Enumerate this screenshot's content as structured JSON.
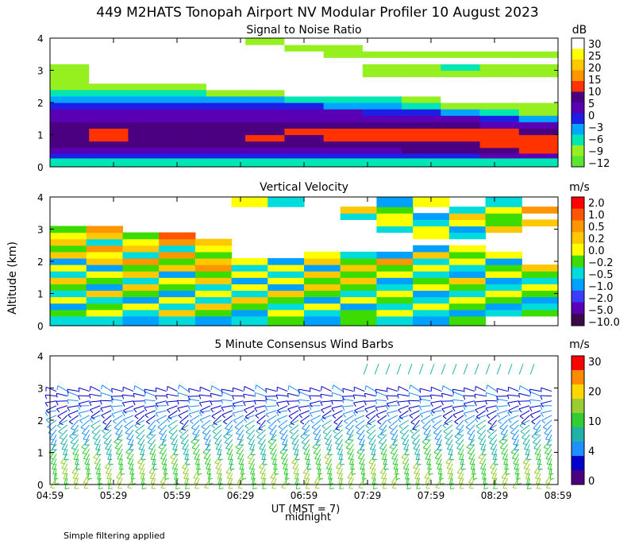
{
  "figure": {
    "title": "449 M2HATS Tonopah Airport NV Modular Profiler 10 August 2023",
    "ylabel": "Altitude (km)",
    "xlabel": "UT  (MST = 7)",
    "xnote": "midnight",
    "footnote": "Simple filtering applied"
  },
  "chart_data": [
    {
      "type": "heatmap",
      "title": "Signal to Noise Ratio",
      "x": [
        "04:59",
        "05:29",
        "05:59",
        "06:29",
        "06:59",
        "07:29",
        "07:59",
        "08:29",
        "08:59"
      ],
      "y_ticks": [
        "0",
        "1",
        "2",
        "3",
        "4"
      ],
      "ylim": [
        0,
        4
      ],
      "colorbar": {
        "unit": "dB",
        "labels": [
          "30",
          "25",
          "20",
          "15",
          "10",
          "5",
          "0",
          "−3",
          "−6",
          "−9",
          "−12"
        ],
        "colors": [
          "#ffffff",
          "#ffff00",
          "#ffc800",
          "#ff9600",
          "#ff3300",
          "#4b0082",
          "#5a00b4",
          "#1e1ee6",
          "#00a5ff",
          "#00e6b4",
          "#96f020",
          "#5ae632"
        ]
      },
      "rows_altitude_km": [
        0.2,
        0.35,
        0.5,
        0.7,
        0.9,
        1.1,
        1.3,
        1.5,
        1.7,
        1.9,
        2.1,
        2.3,
        2.5,
        2.7,
        2.9,
        3.1,
        3.3,
        3.5,
        3.7,
        3.9
      ],
      "values_dB": [
        [
          -9,
          -9,
          -9,
          -9,
          -9,
          -9,
          -9,
          -9,
          -9,
          -9,
          -9,
          -9,
          -9
        ],
        [
          -3,
          -3,
          -3,
          -3,
          -3,
          -3,
          -3,
          -3,
          -3,
          -3,
          -3,
          0,
          0
        ],
        [
          3,
          3,
          3,
          3,
          3,
          3,
          3,
          3,
          3,
          5,
          5,
          8,
          12
        ],
        [
          5,
          5,
          5,
          5,
          5,
          6,
          6,
          7,
          8,
          8,
          9,
          10,
          10
        ],
        [
          5,
          10,
          6,
          8,
          5,
          10,
          8,
          10,
          12,
          12,
          13,
          12,
          10
        ],
        [
          5,
          12,
          5,
          5,
          8,
          5,
          10,
          12,
          12,
          12,
          12,
          10,
          5
        ],
        [
          5,
          5,
          5,
          5,
          5,
          5,
          5,
          5,
          5,
          5,
          5,
          3,
          0
        ],
        [
          3,
          3,
          3,
          3,
          3,
          3,
          3,
          3,
          3,
          2,
          0,
          -3,
          -6
        ],
        [
          0,
          0,
          0,
          0,
          0,
          0,
          0,
          0,
          -1,
          -3,
          -6,
          -9,
          -12
        ],
        [
          -3,
          -3,
          -3,
          -3,
          -3,
          -3,
          -3,
          -5,
          -6,
          -9,
          -12,
          -12,
          -12
        ],
        [
          -6,
          -6,
          -6,
          -6,
          -6,
          -6,
          -9,
          -9,
          -9,
          -12,
          30,
          30,
          30
        ],
        [
          -9,
          -9,
          -9,
          -9,
          -12,
          -12,
          30,
          30,
          30,
          30,
          30,
          30,
          30
        ],
        [
          -12,
          -12,
          -12,
          -12,
          30,
          30,
          30,
          30,
          30,
          30,
          30,
          30,
          30
        ],
        [
          -12,
          30,
          30,
          30,
          30,
          30,
          30,
          30,
          30,
          30,
          30,
          30,
          30
        ],
        [
          -12,
          30,
          30,
          30,
          30,
          30,
          30,
          30,
          -12,
          -12,
          -12,
          -12,
          -12
        ],
        [
          -12,
          30,
          30,
          30,
          30,
          30,
          30,
          30,
          -12,
          -12,
          -9,
          -12,
          -12
        ],
        [
          30,
          30,
          30,
          30,
          30,
          30,
          30,
          30,
          30,
          30,
          30,
          30,
          30
        ],
        [
          30,
          30,
          30,
          30,
          30,
          30,
          30,
          -12,
          -12,
          -12,
          -12,
          -12,
          -12
        ],
        [
          30,
          30,
          30,
          30,
          30,
          30,
          -12,
          -12,
          30,
          30,
          30,
          30,
          30
        ],
        [
          30,
          30,
          30,
          30,
          30,
          -12,
          30,
          30,
          30,
          30,
          30,
          30,
          30
        ]
      ]
    },
    {
      "type": "heatmap",
      "title": "Vertical Velocity",
      "x": [
        "04:59",
        "05:29",
        "05:59",
        "06:29",
        "06:59",
        "07:29",
        "07:59",
        "08:29",
        "08:59"
      ],
      "y_ticks": [
        "0",
        "1",
        "2",
        "3",
        "4"
      ],
      "ylim": [
        0,
        4
      ],
      "colorbar": {
        "unit": "m/s",
        "labels": [
          "2.0",
          "1.0",
          "0.5",
          "0.2",
          "0.0",
          "−0.2",
          "−0.5",
          "−1.0",
          "−2.0",
          "−5.0",
          "−10.0"
        ],
        "colors": [
          "#ff0000",
          "#ff5500",
          "#ff9600",
          "#ffc800",
          "#ffff00",
          "#3cdc00",
          "#00dcdc",
          "#00a0ff",
          "#3c3cff",
          "#5a00b4",
          "#3a0a4a"
        ]
      },
      "rows_altitude_km": [
        0.2,
        0.4,
        0.6,
        0.8,
        1.0,
        1.2,
        1.4,
        1.6,
        1.8,
        2.0,
        2.2,
        2.4,
        2.6,
        2.8,
        3.0,
        3.2,
        3.4,
        3.6,
        3.8
      ],
      "values_ms": [
        [
          -0.3,
          -0.3,
          -0.6,
          -0.3,
          -0.6,
          -0.3,
          -0.1,
          -0.6,
          -0.1,
          -0.3,
          -0.6,
          -0.1,
          null,
          null
        ],
        [
          -0.1,
          0.1,
          -0.3,
          0.3,
          -0.1,
          -0.6,
          0.1,
          -0.3,
          -0.1,
          0.1,
          -0.3,
          -0.6,
          -0.3,
          -0.1
        ],
        [
          -0.6,
          -0.1,
          0.1,
          -0.3,
          0.3,
          -0.1,
          -0.3,
          0.1,
          -0.6,
          -0.3,
          0.1,
          -0.1,
          -0.6,
          -0.3
        ],
        [
          0.1,
          -0.3,
          -0.6,
          0.1,
          -0.3,
          0.3,
          -0.1,
          -0.6,
          0.1,
          -0.1,
          -0.3,
          0.1,
          -0.1,
          -0.6
        ],
        [
          -0.3,
          0.3,
          -0.1,
          -0.6,
          0.1,
          -0.3,
          0.3,
          -0.1,
          -0.3,
          0.1,
          -0.6,
          -0.3,
          0.1,
          -0.1
        ],
        [
          -0.1,
          -0.6,
          0.3,
          -0.1,
          -0.3,
          0.1,
          -0.6,
          0.3,
          -0.1,
          -0.3,
          0.1,
          -0.1,
          -0.3,
          0.1
        ],
        [
          0.3,
          -0.1,
          -0.3,
          0.1,
          0.3,
          -0.6,
          0.1,
          -0.1,
          0.3,
          -0.6,
          -0.1,
          0.3,
          -0.6,
          -0.3
        ],
        [
          -0.3,
          0.1,
          0.3,
          -0.6,
          -0.1,
          0.1,
          -0.3,
          0.3,
          -0.1,
          0.1,
          -0.3,
          -0.6,
          0.1,
          -0.1
        ],
        [
          0.1,
          -0.6,
          -0.1,
          0.3,
          0.6,
          -0.3,
          0.1,
          -0.6,
          0.3,
          -0.1,
          0.1,
          -0.3,
          -0.1,
          0.3
        ],
        [
          -0.6,
          0.3,
          0.6,
          -0.1,
          0.3,
          0.1,
          -0.6,
          0.3,
          -0.1,
          0.6,
          -0.3,
          0.1,
          -0.6,
          null
        ],
        [
          0.3,
          0.1,
          -0.3,
          0.6,
          -0.1,
          null,
          null,
          0.1,
          -0.3,
          -0.6,
          0.3,
          -0.1,
          0.1,
          null
        ],
        [
          -0.1,
          0.6,
          0.3,
          -0.3,
          0.1,
          null,
          null,
          null,
          null,
          null,
          -0.6,
          0.1,
          null,
          null
        ],
        [
          0.3,
          -0.3,
          0.1,
          0.6,
          0.3,
          null,
          null,
          null,
          null,
          null,
          null,
          null,
          null,
          null
        ],
        [
          0.1,
          0.3,
          -0.1,
          1.5,
          null,
          null,
          null,
          null,
          null,
          null,
          0.1,
          -0.3,
          null,
          null
        ],
        [
          -0.1,
          0.6,
          null,
          null,
          null,
          null,
          null,
          null,
          null,
          -0.3,
          0.1,
          -0.6,
          0.3,
          null
        ],
        [
          null,
          null,
          null,
          null,
          null,
          null,
          null,
          null,
          null,
          0.1,
          -0.3,
          0.1,
          -0.1,
          0.3
        ],
        [
          null,
          null,
          null,
          null,
          null,
          null,
          null,
          null,
          -0.3,
          0.1,
          -0.6,
          0.3,
          -0.1,
          null
        ],
        [
          null,
          null,
          null,
          null,
          null,
          null,
          null,
          null,
          0.3,
          -0.1,
          null,
          -0.3,
          0.1,
          0.6
        ],
        [
          null,
          null,
          null,
          null,
          null,
          0.1,
          -0.3,
          null,
          null,
          -0.6,
          0.1,
          null,
          -0.3,
          null
        ]
      ]
    },
    {
      "type": "scatter",
      "subtype": "wind-barbs",
      "title": "5 Minute Consensus Wind Barbs",
      "x": [
        "04:59",
        "05:29",
        "05:59",
        "06:29",
        "06:59",
        "07:29",
        "07:59",
        "08:29",
        "08:59"
      ],
      "y_ticks": [
        "0",
        "1",
        "2",
        "3",
        "4"
      ],
      "ylim": [
        0,
        4
      ],
      "colorbar": {
        "unit": "m/s",
        "labels": [
          "30",
          "20",
          "10",
          "4",
          "0"
        ],
        "colors": [
          "#ff0000",
          "#ff8c00",
          "#ffd700",
          "#9acd32",
          "#32cd32",
          "#20b2aa",
          "#1e90ff",
          "#0000cd",
          "#4b0082"
        ]
      },
      "profile": [
        {
          "altitude_km": 0.5,
          "speed_ms": 10,
          "direction_deg": 200
        },
        {
          "altitude_km": 1.0,
          "speed_ms": 9,
          "direction_deg": 205
        },
        {
          "altitude_km": 1.5,
          "speed_ms": 7,
          "direction_deg": 215
        },
        {
          "altitude_km": 2.0,
          "speed_ms": 5,
          "direction_deg": 230
        },
        {
          "altitude_km": 2.5,
          "speed_ms": 3,
          "direction_deg": 260
        },
        {
          "altitude_km": 3.0,
          "speed_ms": 3,
          "direction_deg": 300
        },
        {
          "altitude_km": 3.75,
          "speed_ms": 5,
          "direction_deg": 200
        }
      ]
    }
  ]
}
